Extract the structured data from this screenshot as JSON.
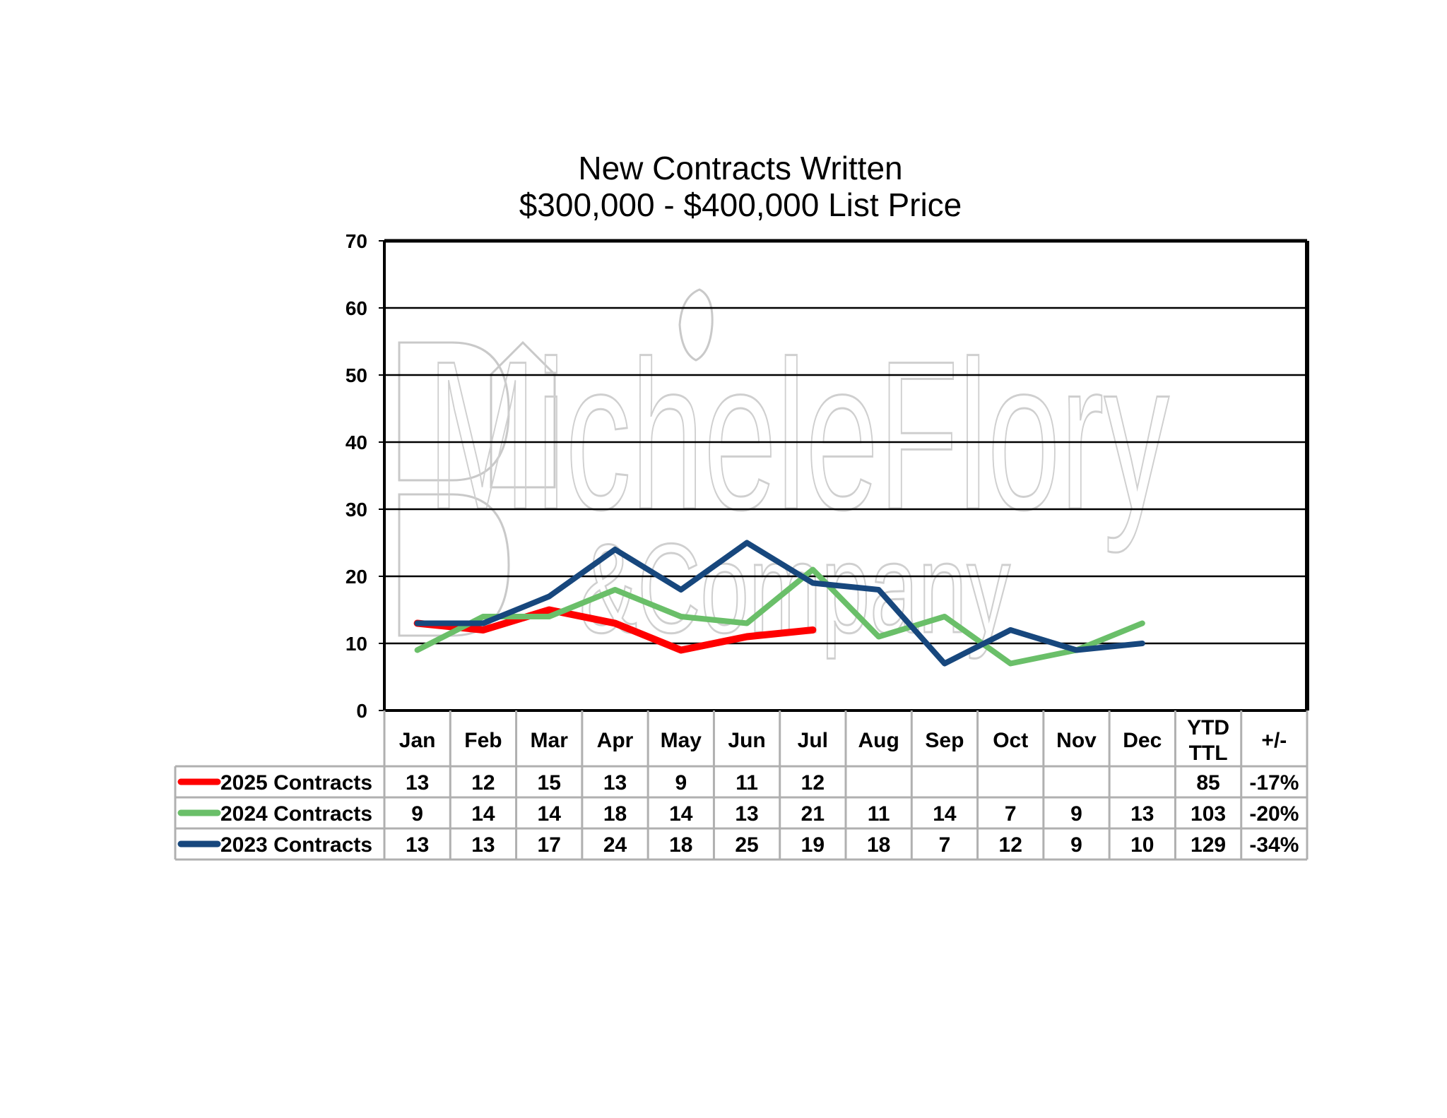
{
  "chart_data": {
    "type": "line",
    "title": "New Contracts Written",
    "subtitle": "$300,000 - $400,000 List Price",
    "categories": [
      "Jan",
      "Feb",
      "Mar",
      "Apr",
      "May",
      "Jun",
      "Jul",
      "Aug",
      "Sep",
      "Oct",
      "Nov",
      "Dec"
    ],
    "ylim": [
      0,
      70
    ],
    "yticks": [
      "0",
      "10",
      "20",
      "30",
      "40",
      "50",
      "60",
      "70"
    ],
    "grid": true,
    "legend": "table-left",
    "series": [
      {
        "name": "2025 Contracts",
        "color": "#ff0000",
        "values": [
          13,
          12,
          15,
          13,
          9,
          11,
          12,
          null,
          null,
          null,
          null,
          null
        ],
        "ytd": "85",
        "change": "-17%"
      },
      {
        "name": "2024 Contracts",
        "color": "#6abf69",
        "values": [
          9,
          14,
          14,
          18,
          14,
          13,
          21,
          11,
          14,
          7,
          9,
          13
        ],
        "ytd": "103",
        "change": "-20%"
      },
      {
        "name": "2023 Contracts",
        "color": "#17477d",
        "values": [
          13,
          13,
          17,
          24,
          18,
          25,
          19,
          18,
          7,
          12,
          9,
          10
        ],
        "ytd": "129",
        "change": "-34%"
      }
    ],
    "table_headers": {
      "ytd": [
        "YTD",
        "TTL"
      ],
      "change": "+/-"
    }
  },
  "watermark": {
    "brand": "MicheleFlory",
    "tagline": "&Company"
  }
}
